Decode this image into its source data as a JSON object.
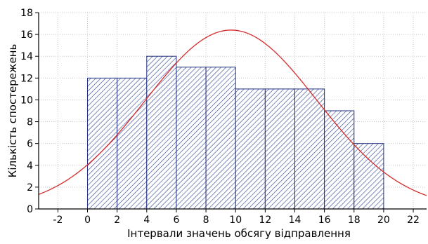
{
  "chart_data": {
    "type": "bar",
    "subtype": "histogram",
    "xlabel": "Інтервали значень обсягу відправлення",
    "ylabel": "Кількість спостережень",
    "xlim": [
      -3.3,
      22.9
    ],
    "ylim": [
      0,
      18
    ],
    "xticks": [
      -2,
      0,
      2,
      4,
      6,
      8,
      10,
      12,
      14,
      16,
      18,
      20,
      22
    ],
    "yticks": [
      0,
      2,
      4,
      6,
      8,
      10,
      12,
      14,
      16,
      18
    ],
    "grid": true,
    "bins": [
      {
        "x0": 0,
        "x1": 2,
        "count": 12
      },
      {
        "x0": 2,
        "x1": 4,
        "count": 12
      },
      {
        "x0": 4,
        "x1": 6,
        "count": 14
      },
      {
        "x0": 6,
        "x1": 8,
        "count": 13
      },
      {
        "x0": 8,
        "x1": 10,
        "count": 13
      },
      {
        "x0": 10,
        "x1": 12,
        "count": 11
      },
      {
        "x0": 12,
        "x1": 14,
        "count": 11
      },
      {
        "x0": 14,
        "x1": 16,
        "count": 11
      },
      {
        "x0": 16,
        "x1": 18,
        "count": 9
      },
      {
        "x0": 18,
        "x1": 20,
        "count": 6
      }
    ],
    "fitted_curve": {
      "type": "normal",
      "peak_x": 9.7,
      "peak_y": 16.4,
      "sigma": 5.8
    },
    "colors": {
      "bar_fill": "#ffffff",
      "bar_hatch": "#2b3f8f",
      "bar_edge": "#1f2f80",
      "curve": "#d62b2b",
      "grid": "#c8c8c8",
      "axis": "#000000"
    }
  }
}
